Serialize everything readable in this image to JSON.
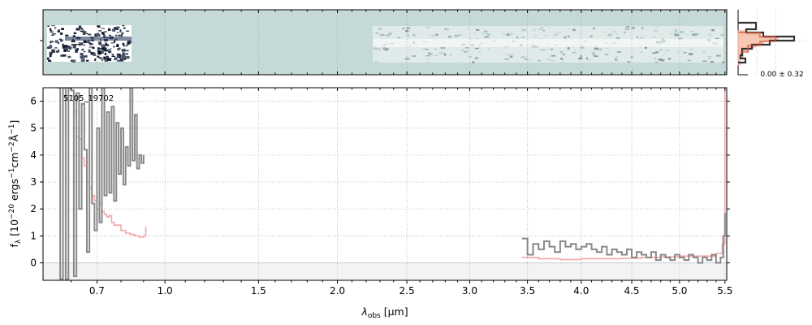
{
  "chart_data": [
    {
      "type": "image",
      "panel": "2d-spectrum",
      "background_color": "#c4d9d8",
      "grid": true
    },
    {
      "type": "histogram",
      "panel": "noise-histogram",
      "label": "0.00 ± 0.32",
      "colors": {
        "data": "#333333",
        "model": "#d35a3a",
        "fill": "#f7c7b4"
      }
    },
    {
      "type": "line",
      "panel": "1d-spectrum",
      "id_label": "5105_19702",
      "xlabel_sym": "λ",
      "xlabel_sub": "obs",
      "xlabel_unit": " [μm]",
      "ylabel_f": "f",
      "ylabel_sub": "λ",
      "ylabel_unit": " [10",
      "ylabel_exp1": "−20",
      "ylabel_erg": " ergs",
      "ylabel_exp2": "−1",
      "ylabel_cm": "cm",
      "ylabel_exp3": "−2",
      "ylabel_ang": "Å",
      "ylabel_exp4": "−1",
      "ylabel_close": "]",
      "x_scale": "sqrt",
      "xlim": [
        0.5,
        5.52
      ],
      "ylim": [
        -0.65,
        6.5
      ],
      "x_ticks": [
        0.7,
        1.0,
        1.5,
        2.0,
        2.5,
        3.0,
        3.5,
        4.0,
        4.5,
        5.0,
        5.5
      ],
      "x_tick_labels": [
        "0.7",
        "1.0",
        "1.5",
        "2.0",
        "2.5",
        "3.0",
        "3.5",
        "4.0",
        "4.5",
        "5.0",
        "5.5"
      ],
      "y_ticks": [
        0,
        1,
        2,
        3,
        4,
        5,
        6
      ],
      "y_tick_labels": [
        "0",
        "1",
        "2",
        "3",
        "4",
        "5",
        "6"
      ],
      "grid": true,
      "series": [
        {
          "role": "data",
          "color": "#888888",
          "x": [
            0.55,
            0.56,
            0.57,
            0.58,
            0.59,
            0.6,
            0.61,
            0.62,
            0.63,
            0.64,
            0.65,
            0.66,
            0.67,
            0.68,
            0.69,
            0.7,
            0.71,
            0.72,
            0.73,
            0.74,
            0.75,
            0.76,
            0.77,
            0.78,
            0.79,
            0.8,
            0.81,
            0.82,
            0.83,
            0.84,
            0.85,
            0.86,
            0.87,
            0.88,
            0.89,
            0.9,
            3.45,
            3.5,
            3.55,
            3.6,
            3.65,
            3.7,
            3.75,
            3.8,
            3.85,
            3.9,
            3.95,
            4.0,
            4.05,
            4.1,
            4.15,
            4.2,
            4.25,
            4.3,
            4.35,
            4.4,
            4.45,
            4.5,
            4.55,
            4.6,
            4.65,
            4.7,
            4.75,
            4.8,
            4.85,
            4.9,
            4.95,
            5.0,
            5.05,
            5.1,
            5.15,
            5.2,
            5.25,
            5.3,
            5.35,
            5.4,
            5.45,
            5.48,
            5.5
          ],
          "y": [
            6.5,
            -0.6,
            6.5,
            -0.6,
            6.5,
            6.4,
            -0.5,
            6.3,
            2.0,
            5.9,
            4.2,
            0.4,
            6.5,
            2.2,
            1.2,
            5.0,
            1.5,
            6.5,
            2.5,
            5.6,
            2.6,
            5.8,
            2.3,
            5.2,
            3.3,
            5.0,
            2.9,
            4.3,
            3.6,
            6.5,
            3.8,
            5.5,
            3.5,
            4.0,
            3.7,
            4.0,
            0.9,
            0.3,
            0.7,
            0.5,
            0.8,
            0.6,
            0.4,
            0.8,
            0.6,
            0.7,
            0.5,
            0.6,
            0.7,
            0.5,
            0.4,
            0.6,
            0.3,
            0.5,
            0.4,
            0.3,
            0.5,
            0.2,
            0.4,
            0.3,
            0.2,
            0.4,
            0.1,
            0.3,
            0.2,
            0.1,
            0.3,
            0.2,
            0.1,
            0.3,
            0.2,
            0.0,
            0.2,
            0.1,
            0.3,
            0.0,
            0.2,
            1.0,
            1.85
          ]
        },
        {
          "role": "model",
          "color": "#f4a6a6",
          "x": [
            0.6,
            0.61,
            0.62,
            0.63,
            0.64,
            0.65,
            0.66,
            0.67,
            0.68,
            0.69,
            0.7,
            0.71,
            0.72,
            0.73,
            0.74,
            0.75,
            0.76,
            0.77,
            0.78,
            0.8,
            0.82,
            0.84,
            0.86,
            0.88,
            0.9,
            0.91,
            3.45,
            3.6,
            3.8,
            4.0,
            4.2,
            4.4,
            4.6,
            4.8,
            5.0,
            5.2,
            5.4,
            5.47,
            5.5
          ],
          "y": [
            6.2,
            5.6,
            4.7,
            4.6,
            3.9,
            3.6,
            3.0,
            2.8,
            2.5,
            2.3,
            2.0,
            2.2,
            1.9,
            1.8,
            1.7,
            1.75,
            1.5,
            1.4,
            1.4,
            1.2,
            1.1,
            1.05,
            1.0,
            0.95,
            1.0,
            1.35,
            0.2,
            0.15,
            0.12,
            0.15,
            0.15,
            0.17,
            0.2,
            0.22,
            0.25,
            0.25,
            0.35,
            0.7,
            6.5
          ]
        }
      ]
    }
  ]
}
